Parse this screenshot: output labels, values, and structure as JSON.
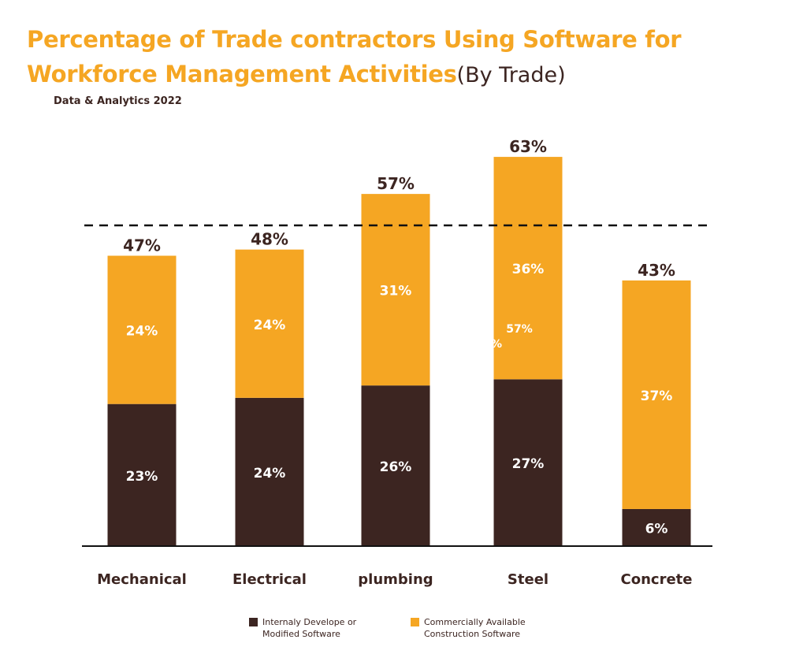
{
  "title": {
    "main": "Percentage of Trade contractors Using Software for Workforce Management Activities",
    "suffix": "(By Trade)"
  },
  "source": "Data & Analytics 2022",
  "colors": {
    "internal": "#3C2521",
    "commercial": "#F5A623",
    "title": "#F5A623",
    "text": "#3C2521"
  },
  "chart_data": {
    "type": "bar",
    "stacked": true,
    "categories": [
      "Mechanical",
      "Electrical",
      "plumbing",
      "Steel",
      "Concrete"
    ],
    "series": [
      {
        "name": "Internaly Develope or Modified Software",
        "values": [
          23,
          24,
          26,
          27,
          6
        ],
        "labels": [
          "23%",
          "24%",
          "26%",
          "27%",
          "6%"
        ]
      },
      {
        "name": "Commercially Available Construction Software",
        "values": [
          24,
          24,
          31,
          36,
          37
        ],
        "labels": [
          "24%",
          "24%",
          "31%",
          "36%",
          "37%"
        ]
      }
    ],
    "totals": [
      47,
      48,
      57,
      63,
      43
    ],
    "total_labels": [
      "47%",
      "48%",
      "57%",
      "63%",
      "43%"
    ],
    "reference_line": 57,
    "annotations": [
      {
        "text": "57%",
        "category": "Steel"
      },
      {
        "text": "%",
        "category": "Steel"
      }
    ],
    "title": "Percentage of Trade contractors Using Software for Workforce Management Activities (By Trade)",
    "xlabel": "",
    "ylabel": "",
    "ylim": [
      0,
      63
    ],
    "grid": false,
    "legend": "bottom"
  },
  "legend": {
    "internal_label": "Internaly Develope or Modified Software",
    "commercial_label": "Commercially Available Construction Software"
  }
}
